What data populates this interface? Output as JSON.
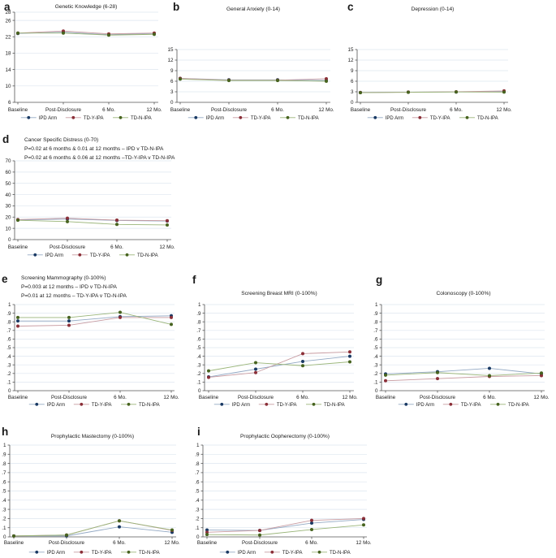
{
  "styles": {
    "grid_color": "#dde6ef",
    "axis_color": "#555555",
    "text_color": "#1a1a1a",
    "series": [
      {
        "name": "IPD Arm",
        "marker_color": "#1a3a64",
        "line_color": "#93a9c4"
      },
      {
        "name": "TD-Y-IPA",
        "marker_color": "#8b2f38",
        "line_color": "#c79aa0"
      },
      {
        "name": "TD-N-IPA",
        "marker_color": "#47631f",
        "line_color": "#9ab579"
      }
    ]
  },
  "chart_data": [
    {
      "type": "line",
      "panel_label": "a",
      "title": "Genetic Knowledge (6-28)",
      "annotations": [],
      "categories": [
        "Baseline",
        "Post-Disclosure",
        "6 Mo.",
        "12 Mo."
      ],
      "xlabel": "",
      "ylabel": "",
      "ylim": [
        6,
        28
      ],
      "grid": true,
      "legend_position": "bottom",
      "yticks": [
        6,
        10,
        14,
        18,
        22,
        26,
        28
      ],
      "ytick_labels": [
        "6",
        "10",
        "14",
        "18",
        "22",
        "26",
        "28"
      ],
      "series": [
        {
          "name": "IPD Arm",
          "values": [
            22.8,
            23.1,
            22.5,
            22.8
          ]
        },
        {
          "name": "TD-Y-IPA",
          "values": [
            22.9,
            23.4,
            22.7,
            22.9
          ]
        },
        {
          "name": "TD-N-IPA",
          "values": [
            22.9,
            22.9,
            22.4,
            22.6
          ]
        }
      ]
    },
    {
      "type": "line",
      "panel_label": "b",
      "title": "General Anxiety (0-14)",
      "annotations": [],
      "categories": [
        "Baseline",
        "Post-Disclosure",
        "6 Mo.",
        "12 Mo."
      ],
      "xlabel": "",
      "ylabel": "",
      "ylim": [
        0,
        15
      ],
      "grid": true,
      "legend_position": "bottom",
      "yticks": [
        0,
        3,
        6,
        9,
        12,
        15
      ],
      "ytick_labels": [
        "0",
        "3",
        "6",
        "9",
        "12",
        "15"
      ],
      "series": [
        {
          "name": "IPD Arm",
          "values": [
            6.8,
            6.4,
            6.4,
            6.2
          ]
        },
        {
          "name": "TD-Y-IPA",
          "values": [
            6.8,
            6.3,
            6.3,
            6.7
          ]
        },
        {
          "name": "TD-N-IPA",
          "values": [
            6.6,
            6.2,
            6.2,
            6.0
          ]
        }
      ]
    },
    {
      "type": "line",
      "panel_label": "c",
      "title": "Depression (0-14)",
      "annotations": [],
      "categories": [
        "Baseline",
        "Post-Disclosure",
        "6 Mo.",
        "12 Mo."
      ],
      "xlabel": "",
      "ylabel": "",
      "ylim": [
        0,
        15
      ],
      "grid": true,
      "legend_position": "bottom",
      "yticks": [
        0,
        3,
        6,
        9,
        12,
        15
      ],
      "ytick_labels": [
        "0",
        "3",
        "6",
        "9",
        "12",
        "15"
      ],
      "series": [
        {
          "name": "IPD Arm",
          "values": [
            2.8,
            2.9,
            2.95,
            3.0
          ]
        },
        {
          "name": "TD-Y-IPA",
          "values": [
            2.8,
            2.9,
            3.0,
            3.25
          ]
        },
        {
          "name": "TD-N-IPA",
          "values": [
            2.75,
            2.85,
            2.95,
            2.9
          ]
        }
      ]
    },
    {
      "type": "line",
      "panel_label": "d",
      "title": "Cancer Specific Distress (0-70)",
      "annotations": [
        "P=0.02 at 6 months & 0.01 at 12 months – IPD v TD-N-IPA",
        "P=0.02 at 6 months & 0.06 at 12 months –TD-Y-IPA v TD-N-IPA"
      ],
      "categories": [
        "Baseline",
        "Post-Disclosure",
        "6 Mo.",
        "12 Mo."
      ],
      "xlabel": "",
      "ylabel": "",
      "ylim": [
        0,
        70
      ],
      "grid": true,
      "legend_position": "bottom",
      "yticks": [
        0,
        10,
        20,
        30,
        40,
        50,
        60,
        70
      ],
      "ytick_labels": [
        "0",
        "10",
        "20",
        "30",
        "40",
        "50",
        "60",
        "70"
      ],
      "series": [
        {
          "name": "IPD Arm",
          "values": [
            17.5,
            18.3,
            17.0,
            16.5
          ]
        },
        {
          "name": "TD-Y-IPA",
          "values": [
            17.8,
            19.0,
            17.3,
            16.8
          ]
        },
        {
          "name": "TD-N-IPA",
          "values": [
            17.2,
            16.0,
            13.5,
            13.0
          ]
        }
      ]
    },
    {
      "type": "line",
      "panel_label": "e",
      "title": "Screening Mammography (0-100%)",
      "annotations": [
        "P=0.003 at 12 months – IPD v TD-N-IPA",
        "P=0.01 at 12 months – TD-Y-IPA v TD-N-IPA"
      ],
      "categories": [
        "Baseline",
        "Post-Disclosure",
        "6 Mo.",
        "12 Mo."
      ],
      "xlabel": "",
      "ylabel": "",
      "ylim": [
        0,
        1
      ],
      "grid": true,
      "legend_position": "bottom",
      "yticks": [
        0,
        0.1,
        0.2,
        0.3,
        0.4,
        0.5,
        0.6,
        0.7,
        0.8,
        0.9,
        1
      ],
      "ytick_labels": [
        "0",
        ".1",
        ".2",
        ".3",
        ".4",
        ".5",
        ".6",
        ".7",
        ".8",
        ".9",
        "1"
      ],
      "series": [
        {
          "name": "IPD Arm",
          "values": [
            0.81,
            0.81,
            0.86,
            0.87
          ]
        },
        {
          "name": "TD-Y-IPA",
          "values": [
            0.75,
            0.76,
            0.85,
            0.85
          ]
        },
        {
          "name": "TD-N-IPA",
          "values": [
            0.85,
            0.85,
            0.91,
            0.77
          ]
        }
      ]
    },
    {
      "type": "line",
      "panel_label": "f",
      "title": "Screening Breast MRI (0-100%)",
      "annotations": [],
      "categories": [
        "Baseline",
        "Post-Disclosure",
        "6 Mo.",
        "12 Mo."
      ],
      "xlabel": "",
      "ylabel": "",
      "ylim": [
        0,
        1
      ],
      "grid": true,
      "legend_position": "bottom",
      "yticks": [
        0,
        0.1,
        0.2,
        0.3,
        0.4,
        0.5,
        0.6,
        0.7,
        0.8,
        0.9,
        1
      ],
      "ytick_labels": [
        "0",
        ".1",
        ".2",
        ".3",
        ".4",
        ".5",
        ".6",
        ".7",
        ".8",
        ".9",
        "1"
      ],
      "series": [
        {
          "name": "IPD Arm",
          "values": [
            0.16,
            0.25,
            0.34,
            0.4
          ]
        },
        {
          "name": "TD-Y-IPA",
          "values": [
            0.155,
            0.21,
            0.43,
            0.45
          ]
        },
        {
          "name": "TD-N-IPA",
          "values": [
            0.23,
            0.325,
            0.29,
            0.335
          ]
        }
      ]
    },
    {
      "type": "line",
      "panel_label": "g",
      "title": "Colonoscopy (0-100%)",
      "annotations": [],
      "categories": [
        "Baseline",
        "Post-Disclosure",
        "6 Mo.",
        "12 Mo."
      ],
      "xlabel": "",
      "ylabel": "",
      "ylim": [
        0,
        1
      ],
      "grid": true,
      "legend_position": "bottom",
      "yticks": [
        0,
        0.1,
        0.2,
        0.3,
        0.4,
        0.5,
        0.6,
        0.7,
        0.8,
        0.9,
        1
      ],
      "ytick_labels": [
        "0",
        ".1",
        ".2",
        ".3",
        ".4",
        ".5",
        ".6",
        ".7",
        ".8",
        ".9",
        "1"
      ],
      "series": [
        {
          "name": "IPD Arm",
          "values": [
            0.195,
            0.22,
            0.26,
            0.195
          ]
        },
        {
          "name": "TD-Y-IPA",
          "values": [
            0.115,
            0.14,
            0.165,
            0.175
          ]
        },
        {
          "name": "TD-N-IPA",
          "values": [
            0.18,
            0.21,
            0.175,
            0.205
          ]
        }
      ]
    },
    {
      "type": "line",
      "panel_label": "h",
      "title": "Prophylactic Mastectomy (0-100%)",
      "annotations": [],
      "categories": [
        "Baseline",
        "Post-Disclosure",
        "6 Mo.",
        "12 Mo."
      ],
      "xlabel": "",
      "ylabel": "",
      "ylim": [
        0,
        1
      ],
      "grid": true,
      "legend_position": "bottom",
      "yticks": [
        0,
        0.1,
        0.2,
        0.3,
        0.4,
        0.5,
        0.6,
        0.7,
        0.8,
        0.9,
        1
      ],
      "ytick_labels": [
        "0",
        ".1",
        ".2",
        ".3",
        ".4",
        ".5",
        ".6",
        ".7",
        ".8",
        ".9",
        "1"
      ],
      "series": [
        {
          "name": "IPD Arm",
          "values": [
            0.01,
            0.01,
            0.11,
            0.05
          ]
        },
        {
          "name": "TD-Y-IPA",
          "values": [
            0.01,
            0.02,
            0.175,
            0.07
          ]
        },
        {
          "name": "TD-N-IPA",
          "values": [
            0.01,
            0.02,
            0.175,
            0.075
          ]
        }
      ]
    },
    {
      "type": "line",
      "panel_label": "i",
      "title": "Prophylactic Oopherectomy (0-100%)",
      "annotations": [],
      "categories": [
        "Baseline",
        "Post-Disclosure",
        "6 Mo.",
        "12 Mo."
      ],
      "xlabel": "",
      "ylabel": "",
      "ylim": [
        0,
        1
      ],
      "grid": true,
      "legend_position": "bottom",
      "yticks": [
        0,
        0.1,
        0.2,
        0.3,
        0.4,
        0.5,
        0.6,
        0.7,
        0.8,
        0.9,
        1
      ],
      "ytick_labels": [
        "0",
        ".1",
        ".2",
        ".3",
        ".4",
        ".5",
        ".6",
        ".7",
        ".8",
        ".9",
        "1"
      ],
      "series": [
        {
          "name": "IPD Arm",
          "values": [
            0.075,
            0.07,
            0.15,
            0.19
          ]
        },
        {
          "name": "TD-Y-IPA",
          "values": [
            0.05,
            0.07,
            0.18,
            0.2
          ]
        },
        {
          "name": "TD-N-IPA",
          "values": [
            0.025,
            0.02,
            0.08,
            0.13
          ]
        }
      ]
    }
  ]
}
